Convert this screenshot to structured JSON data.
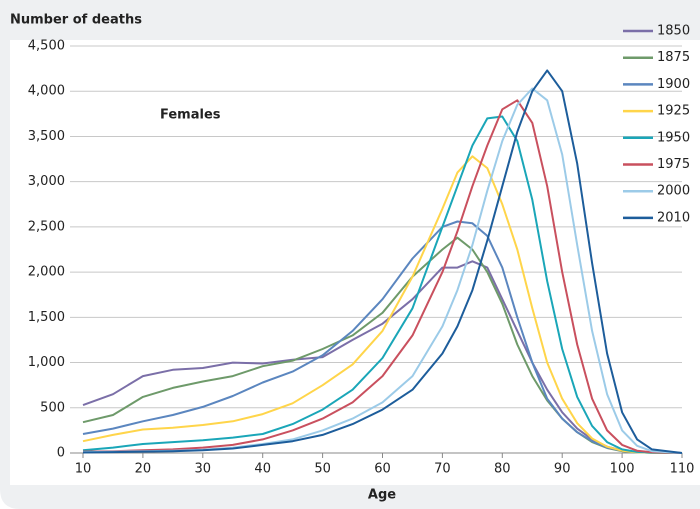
{
  "chart_data": {
    "type": "line",
    "title": "Number of deaths",
    "xlabel": "Age",
    "annotation": "Females",
    "x": [
      10,
      15,
      20,
      25,
      30,
      35,
      40,
      45,
      50,
      55,
      60,
      65,
      70,
      72.5,
      75,
      77.5,
      80,
      82.5,
      85,
      87.5,
      90,
      92.5,
      95,
      97.5,
      100,
      102.5,
      105,
      110
    ],
    "series": [
      {
        "name": "1850",
        "color": "#7b6fa8",
        "values": [
          530,
          650,
          850,
          920,
          940,
          1000,
          990,
          1030,
          1060,
          1250,
          1430,
          1700,
          2050,
          2050,
          2120,
          2050,
          1700,
          1350,
          1000,
          700,
          450,
          270,
          150,
          70,
          30,
          10,
          5,
          0
        ]
      },
      {
        "name": "1875",
        "color": "#6e9a6a",
        "values": [
          340,
          420,
          620,
          720,
          790,
          850,
          960,
          1020,
          1150,
          1300,
          1550,
          1950,
          2250,
          2380,
          2250,
          2000,
          1650,
          1200,
          850,
          580,
          380,
          230,
          120,
          55,
          20,
          8,
          3,
          0
        ]
      },
      {
        "name": "1900",
        "color": "#5b86bf",
        "values": [
          210,
          270,
          350,
          420,
          510,
          630,
          780,
          900,
          1080,
          1350,
          1700,
          2150,
          2500,
          2560,
          2540,
          2400,
          2050,
          1500,
          1000,
          600,
          380,
          230,
          130,
          60,
          25,
          8,
          3,
          0
        ]
      },
      {
        "name": "1925",
        "color": "#ffd54a",
        "values": [
          130,
          200,
          260,
          280,
          310,
          350,
          430,
          550,
          750,
          980,
          1350,
          1950,
          2700,
          3100,
          3280,
          3150,
          2750,
          2250,
          1600,
          1000,
          600,
          330,
          160,
          70,
          25,
          8,
          3,
          0
        ]
      },
      {
        "name": "1950",
        "color": "#1aa6b8",
        "values": [
          30,
          60,
          100,
          120,
          140,
          170,
          210,
          320,
          480,
          700,
          1050,
          1600,
          2500,
          2950,
          3400,
          3700,
          3720,
          3450,
          2800,
          1900,
          1150,
          620,
          300,
          120,
          40,
          12,
          4,
          0
        ]
      },
      {
        "name": "1975",
        "color": "#c9505e",
        "values": [
          15,
          20,
          30,
          40,
          60,
          90,
          150,
          250,
          380,
          560,
          850,
          1300,
          2000,
          2450,
          2950,
          3400,
          3800,
          3900,
          3650,
          2950,
          2000,
          1200,
          600,
          250,
          90,
          25,
          8,
          0
        ]
      },
      {
        "name": "2000",
        "color": "#9ccbe8",
        "values": [
          10,
          15,
          20,
          25,
          35,
          60,
          100,
          150,
          250,
          380,
          560,
          850,
          1400,
          1800,
          2300,
          2900,
          3450,
          3850,
          4030,
          3900,
          3300,
          2300,
          1350,
          650,
          250,
          80,
          20,
          0
        ]
      },
      {
        "name": "2010",
        "color": "#1d5d9b",
        "values": [
          5,
          10,
          15,
          20,
          30,
          50,
          90,
          130,
          200,
          320,
          480,
          700,
          1100,
          1400,
          1800,
          2350,
          2950,
          3550,
          4000,
          4230,
          4000,
          3200,
          2100,
          1100,
          450,
          150,
          40,
          0
        ]
      }
    ],
    "xlim": [
      10,
      110
    ],
    "xticks": [
      10,
      20,
      30,
      40,
      50,
      60,
      70,
      80,
      90,
      100,
      110
    ],
    "ylim": [
      0,
      4500
    ],
    "yticks": [
      0,
      500,
      {
        "value": 1000,
        "label": "1,000"
      },
      {
        "value": 1500,
        "label": "1,500"
      },
      {
        "value": 2000,
        "label": "2,000"
      },
      {
        "value": 2500,
        "label": "2,500"
      },
      {
        "value": 3000,
        "label": "3,000"
      },
      {
        "value": 3500,
        "label": "3,500"
      },
      {
        "value": 4000,
        "label": "4,000"
      },
      {
        "value": 4500,
        "label": "4,500"
      }
    ],
    "grid": true,
    "legend": "right"
  }
}
